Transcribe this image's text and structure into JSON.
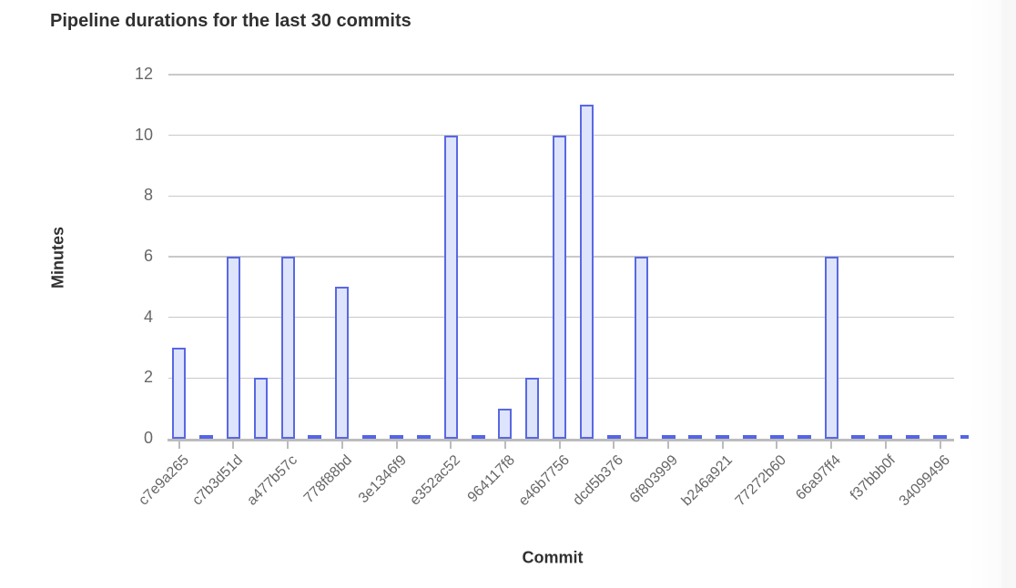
{
  "chart": {
    "title": "Pipeline durations for the last 30 commits",
    "x_axis_title": "Commit",
    "y_axis_title": "Minutes"
  },
  "chart_data": {
    "type": "bar",
    "title": "Pipeline durations for the last 30 commits",
    "xlabel": "Commit",
    "ylabel": "Minutes",
    "ylim": [
      0,
      12
    ],
    "y_ticks": [
      0,
      2,
      4,
      6,
      8,
      10,
      12
    ],
    "grid": true,
    "legend": "none",
    "x_tick_labels": [
      "c7e9a265",
      "c7b3d51d",
      "a477b57c",
      "778f88bd",
      "3e1346f9",
      "e352ac52",
      "964117f8",
      "e46b7756",
      "dcd5b376",
      "6f803999",
      "b246a921",
      "77272b60",
      "66a97ff4",
      "f37bbb0f",
      "34099496"
    ],
    "x_label_every_n_bars": 2,
    "values": [
      3,
      0,
      6,
      2,
      6,
      0,
      5,
      0,
      0,
      0,
      10,
      0,
      1,
      2,
      10,
      11,
      0,
      6,
      0,
      0,
      0,
      0,
      0,
      0,
      6,
      0,
      0,
      0,
      0,
      0
    ],
    "colors": {
      "bar_fill": "#dee4fb",
      "bar_border": "#5968e3",
      "gridline": "#c9c9c9",
      "axis_line": "#bcbcbc",
      "tick_text": "#676767",
      "title_text": "#303030"
    }
  }
}
